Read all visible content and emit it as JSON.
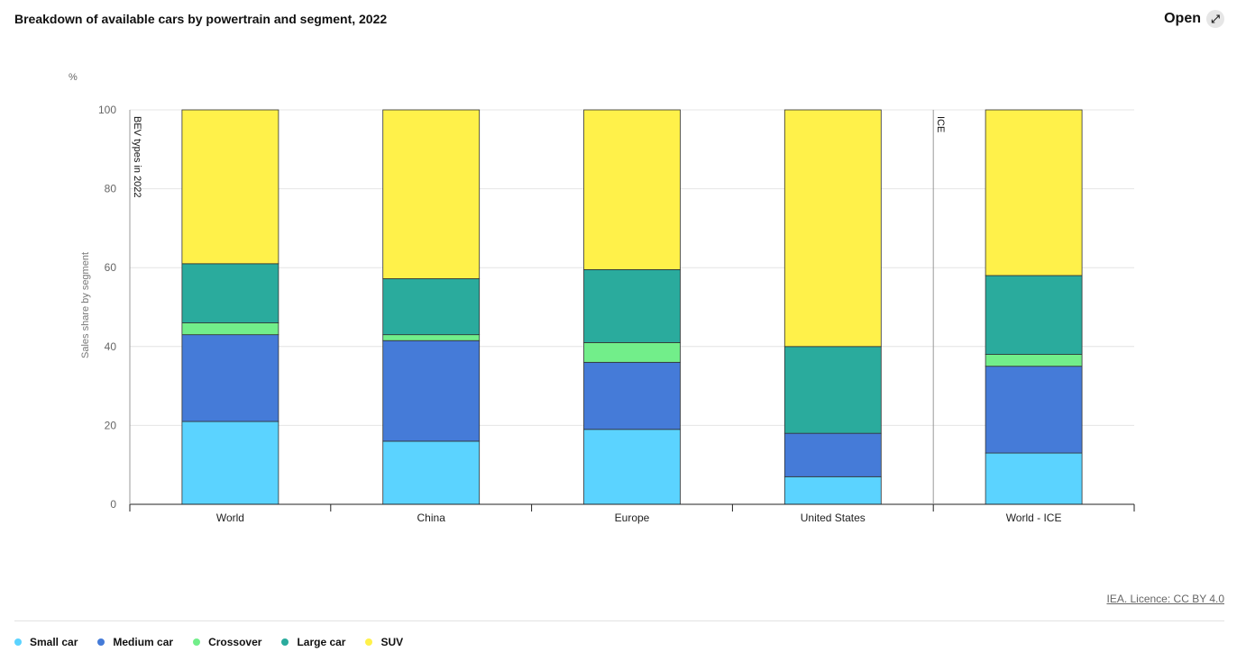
{
  "header": {
    "title": "Breakdown of available cars by powertrain and segment, 2022",
    "open_label": "Open",
    "expand_icon": "expand-icon"
  },
  "footer": {
    "licence": "IEA. Licence: CC BY 4.0"
  },
  "colors": {
    "small": "#5bd3ff",
    "medium": "#457bd8",
    "crossover": "#72ee8a",
    "large": "#2aab9d",
    "suv": "#fff14a"
  },
  "chart_data": {
    "type": "bar",
    "stacked": true,
    "title": "Breakdown of available cars by powertrain and segment, 2022",
    "unit": "%",
    "ylabel": "Sales share by segment",
    "ylim": [
      0,
      100
    ],
    "yticks": [
      0,
      20,
      40,
      60,
      80,
      100
    ],
    "grid": true,
    "legend_position": "bottom-left",
    "categories": [
      "World",
      "China",
      "Europe",
      "United States",
      "World - ICE"
    ],
    "group_labels": [
      {
        "label": "BEV types in 2022",
        "start_index": 0
      },
      {
        "label": "ICE",
        "start_index": 4
      }
    ],
    "series": [
      {
        "name": "Small car",
        "color_key": "small",
        "values": [
          21,
          16,
          19,
          7,
          13
        ]
      },
      {
        "name": "Medium car",
        "color_key": "medium",
        "values": [
          22,
          25.5,
          17,
          11,
          22
        ]
      },
      {
        "name": "Crossover",
        "color_key": "crossover",
        "values": [
          3,
          1.5,
          5,
          0,
          3
        ]
      },
      {
        "name": "Large car",
        "color_key": "large",
        "values": [
          15,
          14.2,
          18.5,
          22,
          20
        ]
      },
      {
        "name": "SUV",
        "color_key": "suv",
        "values": [
          39,
          42.8,
          40.5,
          60,
          42
        ]
      }
    ]
  }
}
